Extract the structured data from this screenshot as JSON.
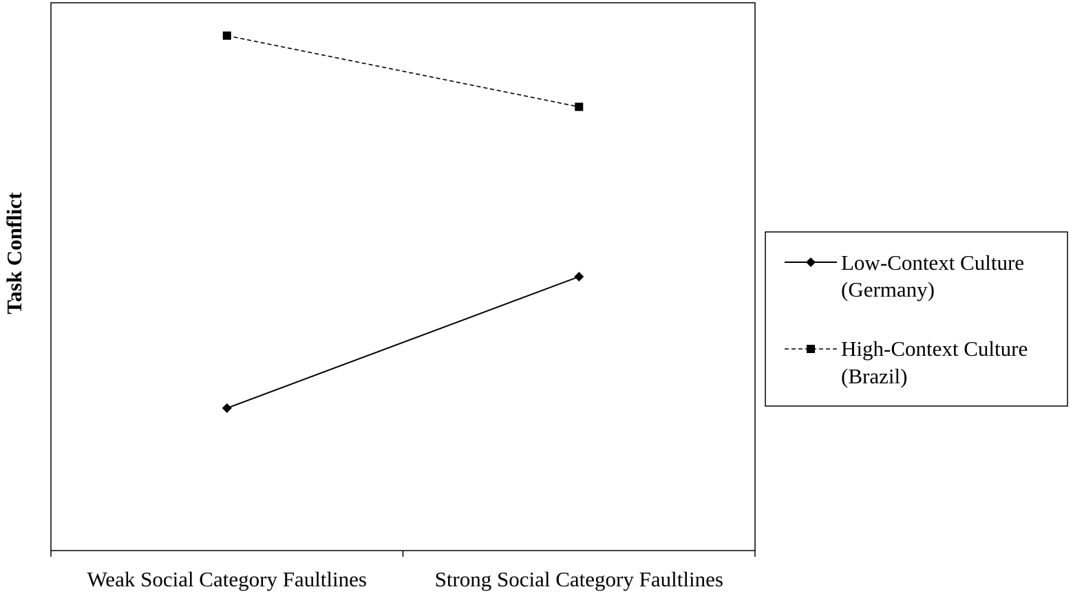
{
  "chart_data": {
    "type": "line",
    "title": "",
    "xlabel": "",
    "ylabel": "Task Conflict",
    "categories": [
      "Weak Social Category Faultlines",
      "Strong Social Category Faultlines"
    ],
    "ylim": [
      0,
      10
    ],
    "grid": false,
    "legend_position": "right",
    "series": [
      {
        "name_lines": [
          "Low-Context Culture",
          "(Germany)"
        ],
        "marker": "diamond",
        "line_style": "solid",
        "color": "#000000",
        "values": [
          2.6,
          5.0
        ]
      },
      {
        "name_lines": [
          "High-Context Culture",
          "(Brazil)"
        ],
        "marker": "square",
        "line_style": "dashed",
        "color": "#000000",
        "values": [
          9.4,
          8.1
        ]
      }
    ]
  }
}
